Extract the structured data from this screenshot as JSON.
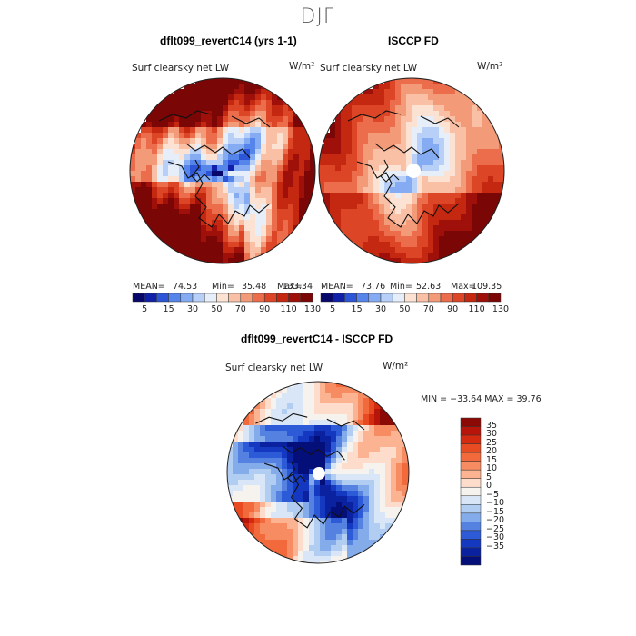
{
  "season": "DJF",
  "panels": [
    {
      "title": "dflt099_revertC14 (yrs 1-1)",
      "variable": "Surf clearsky net LW",
      "units": "W/m²",
      "mean_label": "MEAN=",
      "mean": "74.53",
      "min_label": "Min=",
      "min": "35.48",
      "max_label": "Max=",
      "max": "133.34"
    },
    {
      "title": "ISCCP FD",
      "variable": "Surf clearsky net LW",
      "units": "W/m²",
      "mean_label": "MEAN=",
      "mean": "73.76",
      "min_label": "Min=",
      "min": "52.63",
      "max_label": "Max=",
      "max": "109.35"
    }
  ],
  "field_colorbar": {
    "ticks": [
      "5",
      "15",
      "30",
      "50",
      "70",
      "90",
      "110",
      "130"
    ],
    "colors": [
      "#08086b",
      "#1020a8",
      "#2c55d8",
      "#5585ea",
      "#85acf2",
      "#b8d0f7",
      "#e6eefa",
      "#fbe2d2",
      "#f9c0a5",
      "#f39a78",
      "#ec6d4c",
      "#dd4527",
      "#c42810",
      "#a0100a",
      "#7a0606"
    ]
  },
  "difference": {
    "title": "dflt099_revertC14 - ISCCP FD",
    "variable": "Surf clearsky net LW",
    "units": "W/m²",
    "stats_text": "MIN = −33.64 MAX =  39.76",
    "colorbar_ticks": [
      "35",
      "30",
      "25",
      "20",
      "15",
      "10",
      "5",
      "0",
      "−5",
      "−10",
      "−15",
      "−20",
      "−25",
      "−30",
      "−35"
    ],
    "colorbar_colors": [
      "#8c0a06",
      "#b8150a",
      "#d42a10",
      "#e84a22",
      "#f26a3c",
      "#f78c62",
      "#fbb391",
      "#fddccb",
      "#f6f3ee",
      "#d9e6f8",
      "#b2cdf2",
      "#85acea",
      "#5582e0",
      "#2d5ad6",
      "#1438c0",
      "#0a22a0",
      "#050f7a"
    ]
  }
}
